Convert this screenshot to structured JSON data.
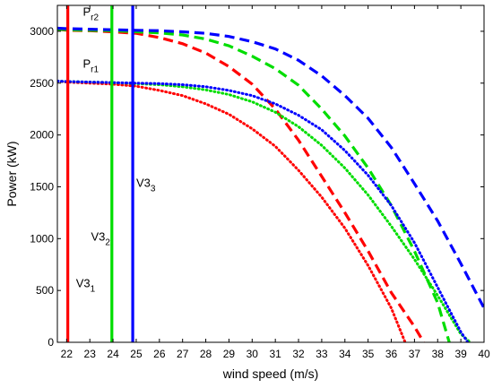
{
  "chart_data": {
    "type": "line",
    "xlabel": "wind speed (m/s)",
    "ylabel": "Power (kW)",
    "xlim": [
      21.6,
      40
    ],
    "ylim": [
      0,
      3250
    ],
    "x_ticks": [
      22,
      23,
      24,
      25,
      26,
      27,
      28,
      29,
      30,
      31,
      32,
      33,
      34,
      35,
      36,
      37,
      38,
      39,
      40
    ],
    "y_ticks": [
      0,
      500,
      1000,
      1500,
      2000,
      2500,
      3000
    ],
    "grid": false,
    "legend": "none",
    "series": [
      {
        "color": "#ff0000",
        "style": "dashed",
        "x": [
          21.6,
          22,
          23,
          24,
          25,
          26,
          27,
          28,
          29,
          30,
          31,
          32,
          33,
          34,
          35,
          36,
          37,
          37.4
        ],
        "y": [
          3020,
          3010,
          3005,
          2995,
          2980,
          2940,
          2880,
          2790,
          2660,
          2490,
          2250,
          1950,
          1600,
          1250,
          880,
          480,
          150,
          0
        ]
      },
      {
        "color": "#00dd00",
        "style": "dashed",
        "x": [
          21.6,
          22,
          23,
          24,
          25,
          26,
          27,
          28,
          29,
          30,
          31,
          32,
          33,
          34,
          35,
          36,
          37,
          38,
          38.5
        ],
        "y": [
          3020,
          3015,
          3010,
          3005,
          2995,
          2985,
          2965,
          2925,
          2860,
          2760,
          2640,
          2480,
          2250,
          1990,
          1680,
          1320,
          880,
          380,
          0
        ]
      },
      {
        "color": "#0000ff",
        "style": "dashed",
        "x": [
          21.6,
          22,
          23,
          24,
          25,
          26,
          27,
          28,
          29,
          30,
          31,
          32,
          33,
          34,
          35,
          36,
          37,
          38,
          39,
          40
        ],
        "y": [
          3030,
          3025,
          3020,
          3015,
          3010,
          3005,
          2995,
          2980,
          2950,
          2900,
          2830,
          2720,
          2570,
          2380,
          2160,
          1880,
          1530,
          1170,
          760,
          330
        ]
      },
      {
        "color": "#ff0000",
        "style": "dotted",
        "x": [
          21.6,
          22,
          23,
          24,
          25,
          26,
          27,
          28,
          29,
          30,
          31,
          32,
          33,
          34,
          35,
          36,
          36.6
        ],
        "y": [
          2520,
          2510,
          2500,
          2490,
          2470,
          2430,
          2380,
          2300,
          2200,
          2060,
          1890,
          1660,
          1400,
          1100,
          740,
          330,
          0
        ]
      },
      {
        "color": "#00dd00",
        "style": "dotted",
        "x": [
          21.6,
          22,
          23,
          24,
          25,
          26,
          27,
          28,
          29,
          30,
          31,
          32,
          33,
          34,
          35,
          36,
          37,
          38,
          39,
          39.4
        ],
        "y": [
          2520,
          2515,
          2510,
          2505,
          2495,
          2485,
          2465,
          2435,
          2390,
          2320,
          2220,
          2080,
          1900,
          1680,
          1420,
          1120,
          800,
          450,
          80,
          0
        ]
      },
      {
        "color": "#0000ff",
        "style": "dotted",
        "x": [
          21.6,
          22,
          23,
          24,
          25,
          26,
          27,
          28,
          29,
          30,
          31,
          32,
          33,
          34,
          35,
          36,
          37,
          38,
          39,
          39.3
        ],
        "y": [
          2520,
          2515,
          2510,
          2505,
          2500,
          2495,
          2485,
          2465,
          2430,
          2380,
          2300,
          2190,
          2050,
          1850,
          1610,
          1320,
          960,
          530,
          100,
          0
        ]
      }
    ],
    "vlines": [
      {
        "x": 22.05,
        "color": "#ff0000"
      },
      {
        "x": 23.95,
        "color": "#00dd00"
      },
      {
        "x": 24.85,
        "color": "#0000ff"
      }
    ],
    "annotations": [
      {
        "id": "pr2",
        "main": "P",
        "sub": "r2",
        "x": 22.7,
        "y": 3150
      },
      {
        "id": "pr1",
        "main": "P",
        "sub": "r1",
        "x": 22.7,
        "y": 2650
      },
      {
        "id": "v33",
        "main": "V3",
        "sub": "3",
        "x": 25.0,
        "y": 1500
      },
      {
        "id": "v32",
        "main": "V3",
        "sub": "2",
        "x": 23.05,
        "y": 980
      },
      {
        "id": "v31",
        "main": "V3",
        "sub": "1",
        "x": 22.4,
        "y": 530
      }
    ]
  }
}
